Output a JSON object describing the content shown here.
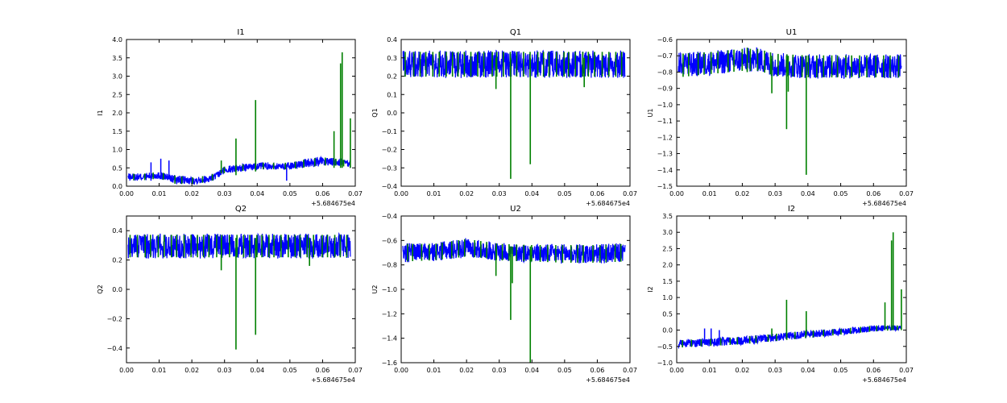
{
  "colors": {
    "series1": "#0000ff",
    "series2": "#008000",
    "axes": "#000000",
    "background": "#ffffff"
  },
  "chart_data": [
    {
      "type": "line",
      "title": "I1",
      "ylabel": "I1",
      "x_offset_label": "+5.684675e4",
      "xlim": [
        0,
        0.07
      ],
      "ylim": [
        0,
        4
      ],
      "xticks": [
        "0.00",
        "0.01",
        "0.02",
        "0.03",
        "0.04",
        "0.05",
        "0.06",
        "0.07"
      ],
      "yticks": [
        "0.0",
        "0.5",
        "1.0",
        "1.5",
        "2.0",
        "2.5",
        "3.0",
        "3.5",
        "4.0"
      ],
      "xtick_values": [
        0,
        0.01,
        0.02,
        0.03,
        0.04,
        0.05,
        0.06,
        0.07
      ],
      "ytick_values": [
        0,
        0.5,
        1,
        1.5,
        2,
        2.5,
        3,
        3.5,
        4
      ],
      "x_range": [
        0.0005,
        0.0685
      ],
      "band": {
        "x": [
          0.0005,
          0.005,
          0.01,
          0.015,
          0.02,
          0.025,
          0.028,
          0.03,
          0.035,
          0.04,
          0.045,
          0.05,
          0.055,
          0.06,
          0.065,
          0.0685
        ],
        "low": [
          0.15,
          0.15,
          0.2,
          0.05,
          0.05,
          0.1,
          0.2,
          0.35,
          0.4,
          0.45,
          0.45,
          0.45,
          0.5,
          0.55,
          0.55,
          0.5
        ],
        "high": [
          0.35,
          0.35,
          0.4,
          0.3,
          0.25,
          0.3,
          0.4,
          0.55,
          0.6,
          0.65,
          0.65,
          0.65,
          0.75,
          0.8,
          0.75,
          0.7
        ]
      },
      "spikes_series1": [
        [
          0.0075,
          0.15,
          0.65
        ],
        [
          0.0105,
          0.2,
          0.75
        ],
        [
          0.013,
          0.2,
          0.7
        ],
        [
          0.049,
          0.15,
          0.55
        ]
      ],
      "spikes_series2": [
        [
          0.0335,
          0.3,
          1.3
        ],
        [
          0.0395,
          0.4,
          2.35
        ],
        [
          0.0635,
          0.5,
          1.5
        ],
        [
          0.0655,
          0.5,
          3.35
        ],
        [
          0.066,
          0.5,
          3.65
        ],
        [
          0.0685,
          0.5,
          1.85
        ],
        [
          0.029,
          0.35,
          0.7
        ]
      ],
      "marks_series2": 22
    },
    {
      "type": "line",
      "title": "Q1",
      "ylabel": "Q1",
      "x_offset_label": "+5.684675e4",
      "xlim": [
        0,
        0.07
      ],
      "ylim": [
        -0.4,
        0.4
      ],
      "xticks": [
        "0.00",
        "0.01",
        "0.02",
        "0.03",
        "0.04",
        "0.05",
        "0.06",
        "0.07"
      ],
      "yticks": [
        "−0.4",
        "−0.3",
        "−0.2",
        "−0.1",
        "0.0",
        "0.1",
        "0.2",
        "0.3",
        "0.4"
      ],
      "xtick_values": [
        0,
        0.01,
        0.02,
        0.03,
        0.04,
        0.05,
        0.06,
        0.07
      ],
      "ytick_values": [
        -0.4,
        -0.3,
        -0.2,
        -0.1,
        0,
        0.1,
        0.2,
        0.3,
        0.4
      ],
      "x_range": [
        0.0005,
        0.0685
      ],
      "band": {
        "x": [
          0.0005,
          0.0685
        ],
        "low": [
          0.19,
          0.19
        ],
        "high": [
          0.34,
          0.34
        ]
      },
      "spikes_series1": [],
      "spikes_series2": [
        [
          0.029,
          0.13,
          0.3
        ],
        [
          0.0335,
          -0.36,
          0.3
        ],
        [
          0.0395,
          -0.28,
          0.3
        ],
        [
          0.056,
          0.14,
          0.3
        ]
      ],
      "marks_series2": 34
    },
    {
      "type": "line",
      "title": "U1",
      "ylabel": "U1",
      "x_offset_label": "+5.684675e4",
      "xlim": [
        0,
        0.07
      ],
      "ylim": [
        -1.5,
        -0.6
      ],
      "xticks": [
        "0.00",
        "0.01",
        "0.02",
        "0.03",
        "0.04",
        "0.05",
        "0.06",
        "0.07"
      ],
      "yticks": [
        "−1.5",
        "−1.4",
        "−1.3",
        "−1.2",
        "−1.1",
        "−1.0",
        "−0.9",
        "−0.8",
        "−0.7",
        "−0.6"
      ],
      "xtick_values": [
        0,
        0.01,
        0.02,
        0.03,
        0.04,
        0.05,
        0.06,
        0.07
      ],
      "ytick_values": [
        -1.5,
        -1.4,
        -1.3,
        -1.2,
        -1.1,
        -1.0,
        -0.9,
        -0.8,
        -0.7,
        -0.6
      ],
      "x_range": [
        0.0005,
        0.0685
      ],
      "band": {
        "x": [
          0.0005,
          0.01,
          0.02,
          0.025,
          0.03,
          0.04,
          0.05,
          0.06,
          0.0685
        ],
        "low": [
          -0.84,
          -0.82,
          -0.8,
          -0.8,
          -0.83,
          -0.84,
          -0.84,
          -0.84,
          -0.84
        ],
        "high": [
          -0.68,
          -0.67,
          -0.65,
          -0.65,
          -0.68,
          -0.69,
          -0.69,
          -0.69,
          -0.69
        ]
      },
      "spikes_series1": [],
      "spikes_series2": [
        [
          0.0215,
          -0.8,
          -0.65
        ],
        [
          0.029,
          -0.93,
          -0.7
        ],
        [
          0.0335,
          -1.15,
          -0.7
        ],
        [
          0.034,
          -0.92,
          -0.7
        ],
        [
          0.0395,
          -1.43,
          -0.7
        ]
      ],
      "marks_series2": 30
    },
    {
      "type": "line",
      "title": "Q2",
      "ylabel": "Q2",
      "x_offset_label": "+5.684675e4",
      "xlim": [
        0,
        0.07
      ],
      "ylim": [
        -0.5,
        0.5
      ],
      "xticks": [
        "0.00",
        "0.01",
        "0.02",
        "0.03",
        "0.04",
        "0.05",
        "0.06",
        "0.07"
      ],
      "yticks": [
        "−0.4",
        "−0.2",
        "0.0",
        "0.2",
        "0.4"
      ],
      "xtick_values": [
        0,
        0.01,
        0.02,
        0.03,
        0.04,
        0.05,
        0.06,
        0.07
      ],
      "ytick_values": [
        -0.4,
        -0.2,
        0,
        0.2,
        0.4
      ],
      "x_range": [
        0.0005,
        0.0685
      ],
      "band": {
        "x": [
          0.0005,
          0.0685
        ],
        "low": [
          0.21,
          0.21
        ],
        "high": [
          0.38,
          0.38
        ]
      },
      "spikes_series1": [],
      "spikes_series2": [
        [
          0.029,
          0.13,
          0.35
        ],
        [
          0.0335,
          -0.41,
          0.35
        ],
        [
          0.0395,
          -0.31,
          0.35
        ],
        [
          0.056,
          0.16,
          0.35
        ]
      ],
      "marks_series2": 34
    },
    {
      "type": "line",
      "title": "U2",
      "ylabel": "U2",
      "x_offset_label": "+5.684675e4",
      "xlim": [
        0,
        0.07
      ],
      "ylim": [
        -1.6,
        -0.4
      ],
      "xticks": [
        "0.00",
        "0.01",
        "0.02",
        "0.03",
        "0.04",
        "0.05",
        "0.06",
        "0.07"
      ],
      "yticks": [
        "−1.6",
        "−1.4",
        "−1.2",
        "−1.0",
        "−0.8",
        "−0.6",
        "−0.4"
      ],
      "xtick_values": [
        0,
        0.01,
        0.02,
        0.03,
        0.04,
        0.05,
        0.06,
        0.07
      ],
      "ytick_values": [
        -1.6,
        -1.4,
        -1.2,
        -1.0,
        -0.8,
        -0.6,
        -0.4
      ],
      "x_range": [
        0.0005,
        0.0685
      ],
      "band": {
        "x": [
          0.0005,
          0.01,
          0.02,
          0.025,
          0.03,
          0.04,
          0.05,
          0.06,
          0.0685
        ],
        "low": [
          -0.78,
          -0.77,
          -0.74,
          -0.75,
          -0.77,
          -0.78,
          -0.79,
          -0.79,
          -0.78
        ],
        "high": [
          -0.62,
          -0.62,
          -0.58,
          -0.6,
          -0.62,
          -0.63,
          -0.63,
          -0.63,
          -0.62
        ]
      },
      "spikes_series1": [],
      "spikes_series2": [
        [
          0.029,
          -0.89,
          -0.65
        ],
        [
          0.0335,
          -1.25,
          -0.65
        ],
        [
          0.034,
          -0.95,
          -0.65
        ],
        [
          0.0395,
          -1.6,
          -0.65
        ]
      ],
      "marks_series2": 30
    },
    {
      "type": "line",
      "title": "I2",
      "ylabel": "I2",
      "x_offset_label": "+5.684675e4",
      "xlim": [
        0,
        0.07
      ],
      "ylim": [
        -1,
        3.5
      ],
      "xticks": [
        "0.00",
        "0.01",
        "0.02",
        "0.03",
        "0.04",
        "0.05",
        "0.06",
        "0.07"
      ],
      "yticks": [
        "−1.0",
        "−0.5",
        "0.0",
        "0.5",
        "1.0",
        "1.5",
        "2.0",
        "2.5",
        "3.0",
        "3.5"
      ],
      "xtick_values": [
        0,
        0.01,
        0.02,
        0.03,
        0.04,
        0.05,
        0.06,
        0.07
      ],
      "ytick_values": [
        -1,
        -0.5,
        0,
        0.5,
        1,
        1.5,
        2,
        2.5,
        3,
        3.5
      ],
      "x_range": [
        0.0005,
        0.0685
      ],
      "band": {
        "x": [
          0.0005,
          0.01,
          0.02,
          0.03,
          0.04,
          0.05,
          0.06,
          0.0685
        ],
        "low": [
          -0.55,
          -0.5,
          -0.45,
          -0.35,
          -0.25,
          -0.15,
          -0.05,
          0.0
        ],
        "high": [
          -0.3,
          -0.25,
          -0.2,
          -0.1,
          -0.0,
          0.05,
          0.15,
          0.15
        ]
      },
      "spikes_series1": [
        [
          0.0085,
          -0.45,
          0.05
        ],
        [
          0.0105,
          -0.45,
          0.05
        ],
        [
          0.013,
          -0.45,
          0.0
        ]
      ],
      "spikes_series2": [
        [
          0.0335,
          -0.2,
          0.93
        ],
        [
          0.0395,
          -0.15,
          0.58
        ],
        [
          0.0635,
          0.0,
          0.85
        ],
        [
          0.0655,
          0.0,
          2.75
        ],
        [
          0.066,
          0.0,
          3.0
        ],
        [
          0.0685,
          0.0,
          1.25
        ],
        [
          0.029,
          -0.2,
          0.05
        ]
      ],
      "marks_series2": 24
    }
  ]
}
